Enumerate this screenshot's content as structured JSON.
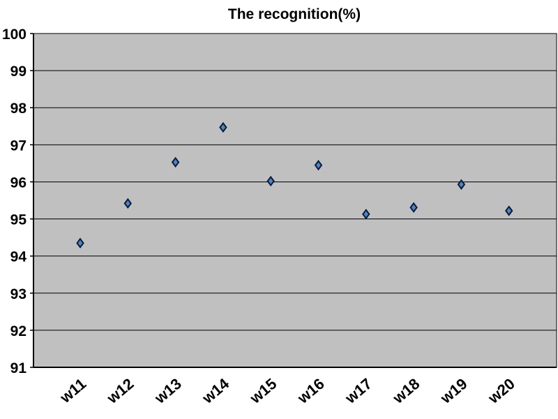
{
  "chart_data": {
    "type": "scatter",
    "title": "The recognition(%)",
    "categories": [
      "w11",
      "w12",
      "w13",
      "w14",
      "w15",
      "w16",
      "w17",
      "w18",
      "w19",
      "w20"
    ],
    "series": [
      {
        "values": [
          94.35,
          95.42,
          96.53,
          97.47,
          96.02,
          96.45,
          95.13,
          95.31,
          95.93,
          95.22
        ]
      }
    ],
    "ylim": [
      91,
      100
    ],
    "yticks": [
      "91",
      "92",
      "93",
      "94",
      "95",
      "96",
      "97",
      "98",
      "99",
      "100"
    ],
    "grid": true,
    "colors": {
      "plot_background": "#c0c0c0",
      "gridline": "#000000",
      "marker_fill": "#4a86c5",
      "marker_edge": "#0b1a3a"
    }
  }
}
